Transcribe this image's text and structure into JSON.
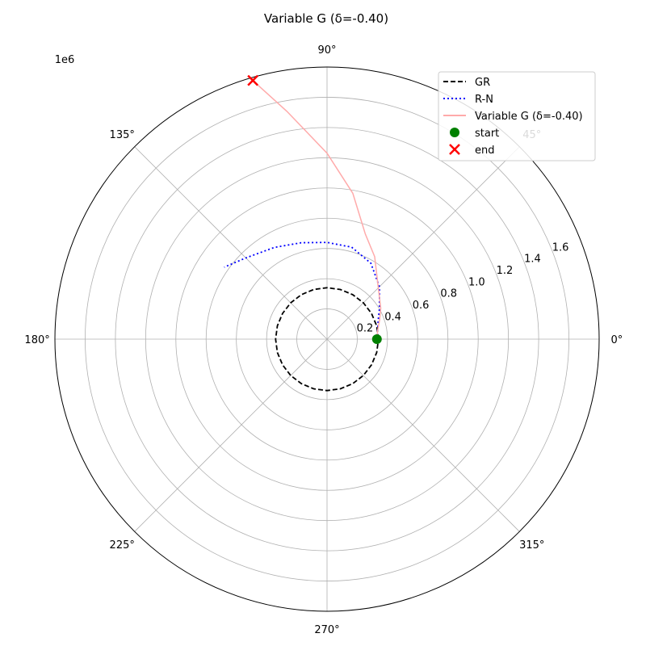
{
  "chart_data": {
    "type": "polar-line",
    "title": "Variable G (δ=-0.40)",
    "radial_scale_label": "1e6",
    "rlim": [
      0,
      1.8
    ],
    "radial_ticks": [
      0.2,
      0.4,
      0.6,
      0.8,
      1.0,
      1.2,
      1.4,
      1.6
    ],
    "radial_tick_labels": [
      "0.2",
      "0.4",
      "0.6",
      "0.8",
      "1.0",
      "1.2",
      "1.4",
      "1.6"
    ],
    "angular_ticks": [
      0,
      45,
      90,
      135,
      180,
      225,
      270,
      315
    ],
    "angular_tick_labels": [
      "0°",
      "45°",
      "90°",
      "135°",
      "180°",
      "225°",
      "270°",
      "315°"
    ],
    "grid": true,
    "legend_position": "top-right",
    "series": [
      {
        "name": "GR",
        "style": "dashed",
        "color": "#000000",
        "theta_deg": [
          0,
          15,
          30,
          45,
          60,
          75,
          90,
          105,
          120,
          135,
          150,
          165,
          180,
          195,
          210,
          225,
          240,
          255,
          270,
          285,
          300,
          315,
          330,
          345,
          360
        ],
        "r": [
          0.34,
          0.34,
          0.34,
          0.34,
          0.34,
          0.34,
          0.34,
          0.34,
          0.34,
          0.34,
          0.34,
          0.34,
          0.34,
          0.34,
          0.34,
          0.34,
          0.34,
          0.34,
          0.34,
          0.34,
          0.34,
          0.34,
          0.34,
          0.34,
          0.34
        ]
      },
      {
        "name": "R-N",
        "style": "dotted",
        "color": "#0000ff",
        "theta_deg": [
          0,
          10,
          20,
          30,
          45,
          60,
          75,
          90,
          105,
          120,
          135,
          145
        ],
        "r": [
          0.33,
          0.34,
          0.36,
          0.4,
          0.49,
          0.58,
          0.63,
          0.64,
          0.66,
          0.7,
          0.76,
          0.83
        ]
      },
      {
        "name": "Variable G (δ=-0.40)",
        "style": "solid",
        "color": "#ffaaaa",
        "theta_deg": [
          0,
          10,
          20,
          30,
          45,
          60,
          70,
          80,
          90,
          100,
          106
        ],
        "r": [
          0.33,
          0.34,
          0.37,
          0.41,
          0.48,
          0.63,
          0.74,
          0.98,
          1.23,
          1.53,
          1.78
        ]
      }
    ],
    "markers": [
      {
        "name": "start",
        "shape": "circle",
        "color": "#008000",
        "theta_deg": 0,
        "r": 0.33
      },
      {
        "name": "end",
        "shape": "x",
        "color": "#ff0000",
        "theta_deg": 106,
        "r": 1.78
      }
    ]
  }
}
